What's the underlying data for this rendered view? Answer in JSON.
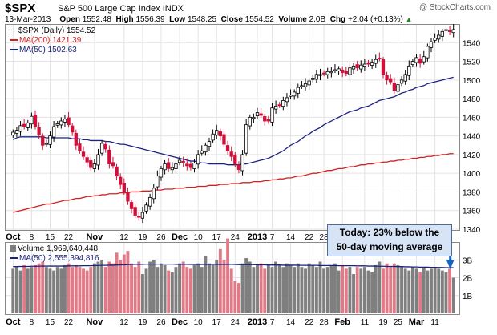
{
  "header": {
    "symbol": "$SPX",
    "description": "S&P 500 Large Cap Index",
    "exchange": "INDX",
    "credit": "@ StockCharts.com",
    "date": "13-Mar-2013",
    "open_label": "Open",
    "open": "1552.48",
    "high_label": "High",
    "high": "1556.39",
    "low_label": "Low",
    "low": "1548.25",
    "close_label": "Close",
    "close": "1554.52",
    "volume_label": "Volume",
    "volume": "2.0B",
    "chg_label": "Chg",
    "chg": "+2.04 (+0.13%)",
    "chg_arrow": "▲"
  },
  "legend": {
    "price": "$SPX (Daily) 1554.52",
    "ma200": "MA(200) 1421.39",
    "ma50": "MA(50) 1502.63",
    "volume": "Volume 1,969,640,448",
    "vol_ma50": "MA(50) 2,555,394,816"
  },
  "callout": {
    "line1": "Today: 23% below the",
    "line2": "50-day moving average"
  },
  "colors": {
    "up": "#000000",
    "down": "#d0103a",
    "ma50": "#1a237e",
    "ma200": "#d32020",
    "vol_up": "#7f7f7f",
    "vol_down": "#e07a87",
    "callout_arrow": "#1565c0"
  },
  "chart_data": [
    {
      "type": "candlestick",
      "title": "$SPX (Daily)",
      "ylim": [
        1340,
        1560
      ],
      "y_ticks": [
        1340,
        1360,
        1380,
        1400,
        1420,
        1440,
        1460,
        1480,
        1500,
        1520,
        1540
      ],
      "x_tick_labels": [
        "Oct",
        "8",
        "15",
        "22",
        "Nov",
        "12",
        "19",
        "26",
        "Dec",
        "10",
        "17",
        "24",
        "2013",
        "7",
        "14",
        "22",
        "28",
        "Feb",
        "11",
        "19",
        "25",
        "Mar",
        "11"
      ],
      "x_tick_index": [
        0,
        5,
        10,
        15,
        22,
        30,
        35,
        40,
        45,
        50,
        55,
        60,
        66,
        70,
        75,
        80,
        84,
        89,
        95,
        100,
        104,
        109,
        114
      ],
      "bold_tick_labels": [
        "Oct",
        "Nov",
        "Dec",
        "2013",
        "Feb",
        "Mar"
      ],
      "closes": [
        1444,
        1446,
        1451,
        1450,
        1454,
        1461,
        1450,
        1441,
        1430,
        1432,
        1440,
        1450,
        1453,
        1456,
        1458,
        1452,
        1444,
        1430,
        1424,
        1418,
        1412,
        1406,
        1410,
        1420,
        1432,
        1426,
        1410,
        1408,
        1397,
        1388,
        1380,
        1370,
        1362,
        1355,
        1353,
        1358,
        1366,
        1374,
        1384,
        1397,
        1405,
        1410,
        1405,
        1406,
        1410,
        1414,
        1411,
        1408,
        1406,
        1411,
        1420,
        1424,
        1430,
        1434,
        1442,
        1446,
        1440,
        1431,
        1424,
        1418,
        1410,
        1404,
        1420,
        1452,
        1460,
        1460,
        1465,
        1462,
        1456,
        1456,
        1470,
        1472,
        1473,
        1478,
        1481,
        1484,
        1487,
        1492,
        1494,
        1496,
        1499,
        1502,
        1506,
        1506,
        1507,
        1509,
        1509,
        1511,
        1512,
        1508,
        1507,
        1513,
        1515,
        1513,
        1516,
        1517,
        1517,
        1519,
        1522,
        1523,
        1506,
        1500,
        1498,
        1489,
        1495,
        1500,
        1506,
        1515,
        1520,
        1524,
        1518,
        1525,
        1536,
        1541,
        1545,
        1548,
        1552,
        1554,
        1552,
        1554
      ],
      "ma50": [
        1436,
        1438,
        1439,
        1439,
        1439,
        1439,
        1439,
        1439,
        1439,
        1438,
        1438,
        1438,
        1438,
        1438,
        1438,
        1438,
        1437,
        1437,
        1437,
        1436,
        1436,
        1435,
        1435,
        1435,
        1435,
        1434,
        1434,
        1433,
        1432,
        1431,
        1431,
        1430,
        1429,
        1428,
        1427,
        1426,
        1425,
        1424,
        1423,
        1422,
        1421,
        1420,
        1419,
        1418,
        1417,
        1416,
        1415,
        1414,
        1413,
        1413,
        1412,
        1411,
        1411,
        1410,
        1410,
        1410,
        1410,
        1410,
        1409,
        1409,
        1409,
        1409,
        1410,
        1410,
        1411,
        1412,
        1413,
        1414,
        1415,
        1416,
        1418,
        1420,
        1422,
        1424,
        1427,
        1430,
        1432,
        1434,
        1437,
        1440,
        1442,
        1445,
        1447,
        1449,
        1452,
        1454,
        1456,
        1458,
        1460,
        1462,
        1464,
        1466,
        1467,
        1468,
        1470,
        1471,
        1472,
        1474,
        1476,
        1478,
        1479,
        1480,
        1481,
        1482,
        1484,
        1486,
        1487,
        1489,
        1490,
        1492,
        1493,
        1494,
        1496,
        1497,
        1498,
        1499,
        1500,
        1501,
        1502,
        1503
      ],
      "ma200": [
        1358,
        1359,
        1360,
        1361,
        1362,
        1363,
        1364,
        1365,
        1366,
        1367,
        1367,
        1368,
        1369,
        1370,
        1371,
        1371,
        1372,
        1373,
        1373,
        1374,
        1375,
        1375,
        1376,
        1376,
        1377,
        1377,
        1378,
        1378,
        1378,
        1379,
        1379,
        1379,
        1380,
        1380,
        1380,
        1381,
        1381,
        1381,
        1382,
        1382,
        1382,
        1383,
        1383,
        1383,
        1384,
        1384,
        1384,
        1385,
        1385,
        1385,
        1386,
        1386,
        1386,
        1387,
        1387,
        1387,
        1388,
        1388,
        1388,
        1389,
        1389,
        1389,
        1390,
        1390,
        1390,
        1391,
        1391,
        1391,
        1392,
        1392,
        1393,
        1393,
        1394,
        1394,
        1395,
        1395,
        1396,
        1397,
        1397,
        1398,
        1399,
        1400,
        1400,
        1401,
        1402,
        1403,
        1403,
        1404,
        1405,
        1405,
        1406,
        1407,
        1407,
        1408,
        1409,
        1409,
        1410,
        1410,
        1411,
        1411,
        1412,
        1412,
        1413,
        1413,
        1414,
        1414,
        1415,
        1415,
        1416,
        1416,
        1417,
        1417,
        1418,
        1418,
        1419,
        1419,
        1420,
        1420,
        1421,
        1421
      ]
    },
    {
      "type": "bar",
      "title": "Volume",
      "ylim": [
        0,
        4.0
      ],
      "y_ticks": [
        1,
        2,
        3
      ],
      "y_tick_labels": [
        "1B",
        "2B",
        "3B"
      ],
      "unit": "billions",
      "values": [
        2.5,
        2.6,
        2.4,
        2.7,
        2.5,
        2.6,
        2.7,
        2.8,
        2.9,
        2.6,
        2.5,
        2.4,
        2.6,
        2.5,
        2.7,
        2.8,
        2.6,
        2.7,
        2.6,
        2.5,
        2.4,
        2.6,
        2.8,
        2.9,
        3.0,
        2.6,
        2.9,
        2.8,
        3.4,
        3.0,
        3.3,
        3.5,
        2.8,
        2.6,
        2.9,
        2.2,
        2.5,
        2.9,
        3.0,
        2.6,
        2.8,
        2.7,
        2.4,
        2.3,
        2.6,
        2.8,
        2.9,
        2.6,
        2.5,
        2.7,
        2.8,
        2.6,
        3.2,
        2.8,
        2.7,
        3.0,
        3.6,
        3.0,
        4.2,
        2.5,
        1.8,
        1.7,
        2.8,
        3.1,
        2.9,
        2.6,
        2.7,
        2.8,
        2.5,
        2.7,
        2.6,
        2.9,
        2.7,
        2.6,
        2.8,
        2.7,
        2.6,
        2.8,
        2.6,
        2.5,
        2.8,
        2.7,
        2.6,
        2.9,
        2.5,
        2.6,
        2.7,
        2.8,
        2.4,
        2.7,
        2.5,
        2.6,
        2.2,
        2.6,
        2.5,
        2.6,
        2.4,
        2.3,
        2.7,
        2.9,
        2.5,
        2.8,
        2.6,
        2.8,
        2.7,
        2.6,
        2.5,
        2.4,
        2.6,
        2.5,
        2.3,
        2.6,
        2.4,
        2.5,
        2.6,
        2.5,
        2.4,
        2.3,
        2.5,
        2.0
      ],
      "ma50": [
        2.62,
        2.62,
        2.63,
        2.63,
        2.63,
        2.64,
        2.64,
        2.64,
        2.65,
        2.65,
        2.65,
        2.65,
        2.65,
        2.65,
        2.65,
        2.66,
        2.66,
        2.66,
        2.66,
        2.67,
        2.67,
        2.67,
        2.68,
        2.68,
        2.69,
        2.69,
        2.7,
        2.7,
        2.71,
        2.72,
        2.72,
        2.73,
        2.74,
        2.75,
        2.75,
        2.75,
        2.76,
        2.76,
        2.76,
        2.76,
        2.76,
        2.76,
        2.76,
        2.76,
        2.75,
        2.75,
        2.75,
        2.75,
        2.74,
        2.74,
        2.74,
        2.74,
        2.74,
        2.74,
        2.74,
        2.74,
        2.74,
        2.74,
        2.75,
        2.75,
        2.74,
        2.73,
        2.73,
        2.73,
        2.73,
        2.73,
        2.72,
        2.72,
        2.72,
        2.71,
        2.71,
        2.71,
        2.71,
        2.7,
        2.7,
        2.7,
        2.7,
        2.7,
        2.69,
        2.69,
        2.69,
        2.69,
        2.69,
        2.68,
        2.68,
        2.68,
        2.68,
        2.68,
        2.67,
        2.67,
        2.67,
        2.67,
        2.67,
        2.66,
        2.66,
        2.66,
        2.65,
        2.65,
        2.65,
        2.64,
        2.64,
        2.63,
        2.63,
        2.63,
        2.62,
        2.62,
        2.61,
        2.61,
        2.6,
        2.6,
        2.59,
        2.59,
        2.59,
        2.58,
        2.58,
        2.57,
        2.57,
        2.56,
        2.56,
        2.56
      ]
    }
  ]
}
